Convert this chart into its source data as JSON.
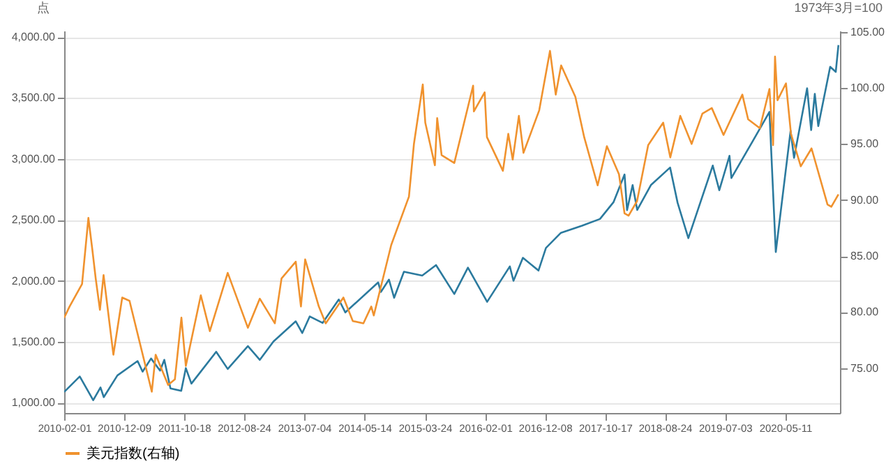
{
  "chart_data": {
    "type": "line",
    "ylabel": "点",
    "y2label": "1973年3月=100",
    "xlim": [
      "2010-02-01",
      "2021-02-20"
    ],
    "xticks": [
      "2010-02-01",
      "2010-12-09",
      "2011-10-18",
      "2012-08-24",
      "2013-07-04",
      "2014-05-14",
      "2015-03-24",
      "2016-02-01",
      "2016-12-08",
      "2017-10-17",
      "2018-08-24",
      "2019-07-03",
      "2020-05-11"
    ],
    "ylim": [
      917,
      4052
    ],
    "yticks": [
      {
        "value": 1000,
        "label": "1,000.00"
      },
      {
        "value": 1500,
        "label": "1,500.00"
      },
      {
        "value": 2000,
        "label": "2,000.00"
      },
      {
        "value": 2500,
        "label": "2,500.00"
      },
      {
        "value": 3000,
        "label": "3,000.00"
      },
      {
        "value": 3500,
        "label": "3,500.00"
      },
      {
        "value": 4000,
        "label": "4,000.00"
      }
    ],
    "y2lim": [
      71,
      105.1
    ],
    "y2ticks": [
      {
        "value": 75,
        "label": "75.00"
      },
      {
        "value": 80,
        "label": "80.00"
      },
      {
        "value": 85,
        "label": "85.00"
      },
      {
        "value": 90,
        "label": "90.00"
      },
      {
        "value": 95,
        "label": "95.00"
      },
      {
        "value": 100,
        "label": "100.00"
      },
      {
        "value": 105,
        "label": "105.00"
      }
    ],
    "grid": "y",
    "legend": "bottom",
    "marker": "none",
    "line_style": "solid",
    "series": [
      {
        "color": "#2b7a9e",
        "x": [
          "2010-02-01",
          "2010-04-23",
          "2010-07-02",
          "2010-08-09",
          "2010-08-26",
          "2010-11-05",
          "2011-02-18",
          "2011-03-16",
          "2011-04-29",
          "2011-06-15",
          "2011-07-07",
          "2011-08-08",
          "2011-10-03",
          "2011-10-27",
          "2011-11-25",
          "2012-04-02",
          "2012-06-01",
          "2012-09-14",
          "2012-11-15",
          "2013-01-25",
          "2013-05-21",
          "2013-06-24",
          "2013-08-02",
          "2013-10-08",
          "2013-12-31",
          "2014-02-03",
          "2014-07-24",
          "2014-08-07",
          "2014-09-18",
          "2014-10-15",
          "2014-12-05",
          "2015-03-10",
          "2015-05-21",
          "2015-08-24",
          "2015-11-03",
          "2016-02-11",
          "2016-06-08",
          "2016-06-27",
          "2016-08-15",
          "2016-11-04",
          "2016-12-13",
          "2017-03-01",
          "2017-06-19",
          "2017-09-20",
          "2017-11-30",
          "2018-01-26",
          "2018-02-08",
          "2018-03-09",
          "2018-04-02",
          "2018-06-12",
          "2018-09-20",
          "2018-10-29",
          "2018-12-24",
          "2019-04-30",
          "2019-06-03",
          "2019-07-26",
          "2019-08-05",
          "2019-11-27",
          "2020-02-19",
          "2020-03-23",
          "2020-06-08",
          "2020-06-26",
          "2020-09-02",
          "2020-09-23",
          "2020-10-12",
          "2020-10-30",
          "2020-12-31",
          "2021-01-29",
          "2021-02-12"
        ],
        "values": [
          1090,
          1217,
          1022,
          1127,
          1047,
          1225,
          1343,
          1256,
          1364,
          1265,
          1353,
          1119,
          1099,
          1285,
          1158,
          1419,
          1278,
          1466,
          1353,
          1503,
          1669,
          1573,
          1709,
          1656,
          1848,
          1742,
          1988,
          1910,
          2011,
          1862,
          2075,
          2044,
          2130,
          1893,
          2109,
          1829,
          2119,
          2001,
          2190,
          2085,
          2271,
          2395,
          2453,
          2508,
          2647,
          2873,
          2581,
          2786,
          2582,
          2786,
          2930,
          2641,
          2351,
          2946,
          2744,
          3026,
          2844,
          3154,
          3386,
          2237,
          3232,
          3009,
          3580,
          3237,
          3534,
          3270,
          3756,
          3714,
          3934
        ]
      },
      {
        "name": "美元指数(右轴)",
        "color": "#f0922e",
        "axis": "y2",
        "x": [
          "2010-02-01",
          "2010-03-01",
          "2010-05-05",
          "2010-06-07",
          "2010-06-28",
          "2010-07-15",
          "2010-08-06",
          "2010-08-25",
          "2010-10-15",
          "2010-11-30",
          "2011-01-07",
          "2011-05-03",
          "2011-05-23",
          "2011-07-27",
          "2011-08-31",
          "2011-10-04",
          "2011-10-27",
          "2012-01-13",
          "2012-02-29",
          "2012-06-01",
          "2012-09-14",
          "2012-11-15",
          "2013-02-01",
          "2013-03-08",
          "2013-05-21",
          "2013-06-17",
          "2013-07-09",
          "2013-09-18",
          "2013-10-24",
          "2014-01-24",
          "2014-03-14",
          "2014-05-08",
          "2014-06-18",
          "2014-07-01",
          "2014-09-30",
          "2014-12-31",
          "2015-01-26",
          "2015-03-13",
          "2015-03-26",
          "2015-05-15",
          "2015-05-27",
          "2015-06-19",
          "2015-08-24",
          "2015-11-30",
          "2015-12-04",
          "2016-01-29",
          "2016-02-10",
          "2016-05-03",
          "2016-05-31",
          "2016-06-23",
          "2016-07-25",
          "2016-08-18",
          "2016-11-08",
          "2017-01-03",
          "2017-02-02",
          "2017-03-02",
          "2017-05-15",
          "2017-06-30",
          "2017-09-08",
          "2017-10-26",
          "2017-12-28",
          "2018-01-26",
          "2018-02-16",
          "2018-04-01",
          "2018-05-29",
          "2018-08-15",
          "2018-09-21",
          "2018-11-12",
          "2019-01-10",
          "2019-03-07",
          "2019-04-25",
          "2019-06-25",
          "2019-10-01",
          "2019-10-31",
          "2019-12-31",
          "2020-02-19",
          "2020-03-09",
          "2020-03-19",
          "2020-04-01",
          "2020-05-15",
          "2020-06-10",
          "2020-07-31",
          "2020-09-25",
          "2020-12-17",
          "2021-01-06",
          "2021-02-12"
        ],
        "values": [
          79.5,
          80.5,
          82.5,
          88.4,
          85.5,
          83.0,
          80.2,
          83.3,
          76.2,
          81.3,
          81.0,
          72.9,
          76.2,
          73.5,
          74.0,
          79.5,
          75.2,
          81.5,
          78.3,
          83.5,
          78.6,
          81.2,
          79.0,
          83.0,
          84.5,
          80.5,
          84.7,
          80.5,
          79.0,
          81.3,
          79.2,
          79.0,
          80.5,
          79.7,
          86.0,
          90.3,
          95.0,
          100.3,
          96.9,
          93.1,
          97.3,
          94.0,
          93.3,
          100.2,
          97.9,
          99.6,
          95.6,
          92.6,
          95.9,
          93.6,
          97.5,
          94.2,
          98.0,
          103.3,
          99.4,
          102.0,
          99.2,
          95.6,
          91.3,
          94.8,
          92.3,
          88.8,
          88.6,
          89.9,
          94.9,
          96.9,
          93.8,
          97.5,
          95.0,
          97.7,
          98.2,
          95.8,
          99.4,
          97.2,
          96.4,
          99.9,
          94.9,
          102.8,
          98.9,
          100.4,
          95.9,
          93.0,
          94.6,
          89.6,
          89.4,
          90.5
        ]
      }
    ]
  }
}
